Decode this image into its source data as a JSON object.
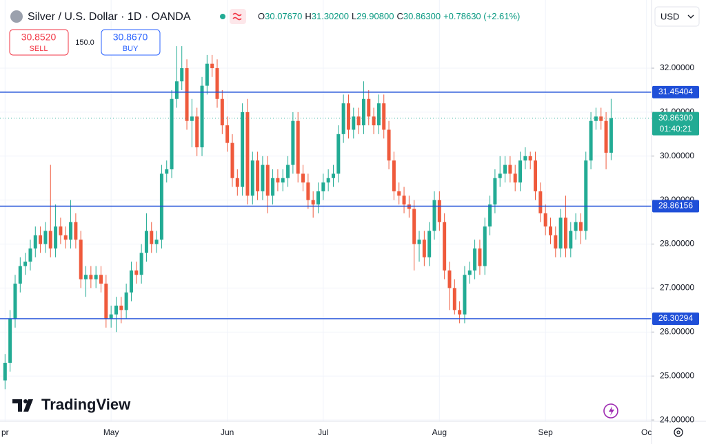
{
  "header": {
    "title": "Silver / U.S. Dollar · 1D · OANDA",
    "ohlc": [
      {
        "key": "O",
        "value": "30.07670"
      },
      {
        "key": "H",
        "value": "31.30200"
      },
      {
        "key": "L",
        "value": "29.90800"
      },
      {
        "key": "C",
        "value": "30.86300"
      }
    ],
    "change": "+0.78630 (+2.61%)",
    "sell_price": "30.8520",
    "sell": "SELL",
    "spread": "150.0",
    "buy_price": "30.8670",
    "buy": "BUY",
    "currency": "USD",
    "brand": "TradingView"
  },
  "chart_data": {
    "type": "candlestick",
    "up_color": "#22ab94",
    "down_color": "#ef5a3c",
    "grid": true,
    "open": [
      24.9,
      25.3,
      26.3,
      27.1,
      27.5,
      27.6,
      27.9,
      28.2,
      28.0,
      28.3,
      27.9,
      28.4,
      28.2,
      28.1,
      28.5,
      28.1,
      27.2,
      27.3,
      27.2,
      27.3,
      27.1,
      26.3,
      26.4,
      26.6,
      26.5,
      26.9,
      27.4,
      27.3,
      27.8,
      28.3,
      28.0,
      28.1,
      29.6,
      29.7,
      31.3,
      31.7,
      32.0,
      30.8,
      30.9,
      30.2,
      31.6,
      32.1,
      32.0,
      31.3,
      30.7,
      30.3,
      29.5,
      29.3,
      31.0,
      29.1,
      29.9,
      29.2,
      29.8,
      29.1,
      29.5,
      29.4,
      29.5,
      29.8,
      30.8,
      29.6,
      29.4,
      29.0,
      28.9,
      29.2,
      29.4,
      29.5,
      29.6,
      30.5,
      31.2,
      30.6,
      30.9,
      30.7,
      31.3,
      30.9,
      30.7,
      31.2,
      30.6,
      29.9,
      29.2,
      29.1,
      28.9,
      28.8,
      28.0,
      28.1,
      27.7,
      28.3,
      29.0,
      28.5,
      27.4,
      27.0,
      26.5,
      26.4,
      27.3,
      27.4,
      27.9,
      27.5,
      28.4,
      28.9,
      29.5,
      29.6,
      29.8,
      29.6,
      29.4,
      29.9,
      30.0,
      29.9,
      29.2,
      28.7,
      28.4,
      28.2,
      27.9,
      28.6,
      27.9,
      28.3,
      28.5,
      28.3,
      29.9,
      30.8,
      30.9,
      30.8,
      30.0767
    ],
    "high": [
      25.5,
      26.5,
      27.3,
      27.7,
      27.8,
      28.1,
      28.4,
      28.4,
      28.5,
      29.8,
      28.9,
      28.6,
      28.4,
      29.0,
      28.7,
      28.3,
      27.5,
      27.5,
      27.5,
      27.5,
      27.3,
      26.6,
      26.8,
      26.8,
      27.1,
      27.6,
      27.6,
      28.0,
      28.7,
      28.5,
      28.3,
      29.8,
      29.9,
      31.5,
      32.5,
      32.5,
      32.2,
      31.3,
      31.1,
      31.8,
      32.3,
      32.3,
      32.2,
      31.5,
      30.9,
      30.5,
      29.7,
      31.2,
      31.3,
      30.1,
      30.1,
      30.0,
      30.0,
      29.7,
      29.7,
      29.7,
      30.0,
      31.0,
      31.0,
      29.8,
      29.6,
      29.2,
      29.4,
      29.6,
      29.7,
      29.8,
      30.7,
      31.4,
      31.4,
      31.1,
      31.1,
      31.7,
      31.5,
      31.1,
      31.4,
      31.4,
      30.8,
      30.1,
      29.4,
      29.3,
      29.1,
      29.0,
      28.3,
      28.3,
      28.5,
      29.2,
      29.2,
      28.7,
      27.6,
      27.2,
      26.7,
      27.5,
      27.6,
      28.1,
      28.1,
      28.6,
      29.1,
      29.7,
      30.0,
      30.0,
      30.0,
      29.8,
      30.1,
      30.2,
      30.1,
      30.1,
      29.4,
      28.9,
      28.6,
      28.4,
      28.8,
      29.1,
      28.5,
      28.7,
      28.7,
      30.1,
      31.0,
      31.1,
      31.1,
      31.0,
      31.302
    ],
    "low": [
      24.7,
      25.1,
      26.1,
      26.9,
      27.3,
      27.4,
      27.7,
      27.8,
      27.8,
      27.7,
      27.7,
      28.0,
      27.9,
      27.9,
      27.9,
      27.0,
      26.8,
      27.0,
      27.0,
      26.9,
      26.1,
      26.1,
      26.0,
      26.2,
      26.3,
      26.7,
      27.1,
      27.1,
      27.6,
      27.8,
      27.8,
      27.9,
      29.4,
      29.5,
      31.1,
      31.5,
      30.6,
      30.2,
      30.0,
      30.0,
      31.4,
      31.8,
      31.1,
      30.5,
      30.1,
      29.3,
      29.1,
      29.1,
      28.9,
      28.9,
      29.0,
      29.0,
      28.7,
      28.9,
      29.2,
      29.2,
      29.3,
      29.6,
      29.4,
      29.2,
      28.8,
      28.6,
      28.7,
      29.0,
      29.2,
      29.3,
      29.4,
      30.3,
      30.4,
      30.4,
      30.5,
      30.5,
      30.7,
      30.5,
      30.5,
      30.4,
      29.7,
      29.0,
      28.9,
      28.7,
      28.6,
      27.4,
      27.6,
      27.5,
      27.5,
      28.1,
      28.3,
      27.2,
      26.5,
      26.4,
      26.2,
      26.2,
      27.1,
      27.2,
      27.3,
      27.3,
      28.2,
      28.7,
      29.3,
      29.4,
      29.4,
      29.2,
      29.2,
      29.7,
      29.7,
      29.0,
      28.5,
      28.2,
      28.0,
      27.7,
      27.7,
      27.7,
      27.7,
      28.1,
      28.0,
      28.1,
      29.7,
      30.6,
      30.6,
      29.7,
      29.908
    ],
    "close": [
      25.3,
      26.3,
      27.1,
      27.5,
      27.6,
      27.9,
      28.2,
      28.0,
      28.3,
      27.9,
      28.4,
      28.2,
      28.1,
      28.5,
      28.1,
      27.2,
      27.3,
      27.2,
      27.3,
      27.1,
      26.3,
      26.4,
      26.6,
      26.5,
      26.9,
      27.4,
      27.3,
      27.8,
      28.3,
      28.0,
      28.1,
      29.6,
      29.7,
      31.3,
      31.7,
      32.0,
      30.8,
      30.9,
      30.2,
      31.6,
      32.1,
      32.0,
      31.3,
      30.7,
      30.3,
      29.5,
      29.3,
      31.0,
      29.1,
      29.9,
      29.2,
      29.8,
      29.1,
      29.5,
      29.4,
      29.5,
      29.8,
      30.8,
      29.6,
      29.4,
      29.0,
      28.9,
      29.2,
      29.4,
      29.5,
      29.6,
      30.5,
      31.2,
      30.6,
      30.9,
      30.7,
      31.3,
      30.9,
      30.7,
      31.2,
      30.6,
      29.9,
      29.2,
      29.1,
      28.9,
      28.8,
      28.0,
      28.1,
      27.7,
      28.3,
      29.0,
      28.5,
      27.4,
      27.0,
      26.5,
      26.4,
      27.3,
      27.4,
      27.9,
      27.5,
      28.4,
      28.9,
      29.5,
      29.6,
      29.8,
      29.6,
      29.4,
      29.9,
      30.0,
      29.9,
      29.2,
      28.7,
      28.4,
      28.2,
      27.9,
      28.6,
      27.9,
      28.3,
      28.5,
      28.3,
      29.9,
      30.8,
      30.9,
      30.8,
      30.0767,
      30.863
    ],
    "xlim": [
      -1,
      128
    ],
    "xticks": [
      {
        "value": 0,
        "label": "pr"
      },
      {
        "value": 21,
        "label": "May"
      },
      {
        "value": 44,
        "label": "Jun"
      },
      {
        "value": 63,
        "label": "Jul"
      },
      {
        "value": 86,
        "label": "Aug"
      },
      {
        "value": 107,
        "label": "Sep"
      },
      {
        "value": 127,
        "label": "Oc"
      }
    ],
    "ylim": [
      23.97,
      33.55
    ],
    "yticks": [
      {
        "value": 24,
        "label": "24.00000"
      },
      {
        "value": 25,
        "label": "25.00000"
      },
      {
        "value": 26,
        "label": "26.00000"
      },
      {
        "value": 27,
        "label": "27.00000"
      },
      {
        "value": 28,
        "label": "28.00000"
      },
      {
        "value": 29,
        "label": "29.00000"
      },
      {
        "value": 30,
        "label": "30.00000"
      },
      {
        "value": 31,
        "label": "31.00000"
      },
      {
        "value": 32,
        "label": "32.00000"
      }
    ],
    "hlines": [
      31.45404,
      28.86156,
      26.30294
    ],
    "hline_color": "#1f4fd8",
    "last_label": "30.86300",
    "countdown": "01:40:21"
  }
}
